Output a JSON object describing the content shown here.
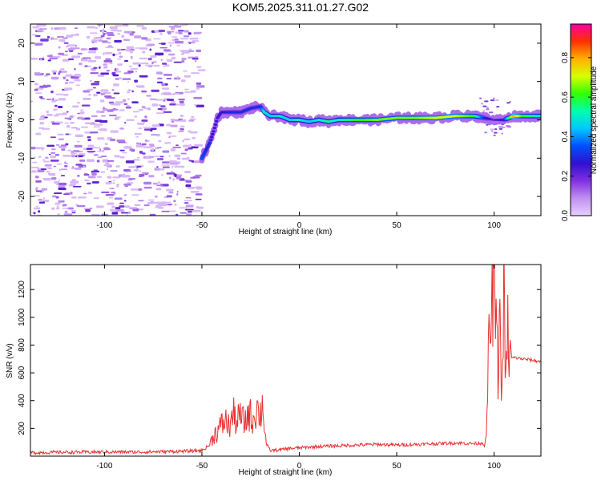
{
  "title": "KOM5.2025.311.01.27.G02",
  "chart_data": [
    {
      "type": "heatmap",
      "name": "spectrogram",
      "xlabel": "Height of straight line (km)",
      "ylabel": "Frequency (Hz)",
      "xlim": [
        -138,
        124
      ],
      "ylim": [
        -25,
        25
      ],
      "xticks": [
        -100,
        -50,
        0,
        50,
        100
      ],
      "yticks": [
        -20,
        -10,
        0,
        10,
        20
      ],
      "colorbar": {
        "label": "Normalized spectral amplitude",
        "range": [
          0.0,
          0.97
        ],
        "ticks": [
          0.0,
          0.2,
          0.4,
          0.6,
          0.8
        ],
        "colormap": [
          "#e8d0ff",
          "#c090f0",
          "#8030e0",
          "#3010d0",
          "#0050ff",
          "#00c8ff",
          "#00ffb0",
          "#30ff00",
          "#d8ff00",
          "#ffb000",
          "#ff3000",
          "#ff00a0"
        ]
      },
      "signal_track": {
        "x": [
          -50,
          -48,
          -46,
          -44,
          -42,
          -40,
          -35,
          -30,
          -25,
          -20,
          -18,
          -15,
          -10,
          -5,
          0,
          5,
          10,
          15,
          20,
          30,
          40,
          50,
          60,
          70,
          80,
          90,
          95,
          100,
          105,
          110,
          115,
          124
        ],
        "y": [
          -10,
          -8,
          -6,
          -3,
          0.5,
          2,
          2,
          2,
          3,
          3.5,
          2,
          1,
          1,
          0,
          0,
          -0.5,
          0,
          -0.5,
          0,
          0,
          0,
          0.5,
          0.5,
          0.5,
          1,
          1,
          0.5,
          0,
          0,
          1,
          1,
          1
        ],
        "amplitude": [
          0.35,
          0.3,
          0.3,
          0.25,
          0.25,
          0.25,
          0.3,
          0.3,
          0.3,
          0.3,
          0.5,
          0.45,
          0.5,
          0.45,
          0.5,
          0.45,
          0.5,
          0.55,
          0.5,
          0.6,
          0.65,
          0.65,
          0.65,
          0.7,
          0.7,
          0.6,
          0.3,
          0.2,
          0.25,
          0.8,
          0.6,
          0.5
        ]
      }
    },
    {
      "type": "line",
      "name": "snr",
      "xlabel": "Height of straight line (km)",
      "ylabel": "SNR (v/v)",
      "xlim": [
        -138,
        124
      ],
      "ylim": [
        0,
        1380
      ],
      "xticks": [
        -100,
        -50,
        0,
        50,
        100
      ],
      "yticks": [
        200,
        400,
        600,
        800,
        1000,
        1200
      ],
      "color": "#e83030",
      "series": [
        {
          "name": "SNR",
          "x": [
            -138,
            -120,
            -100,
            -80,
            -60,
            -50,
            -46,
            -44,
            -42,
            -40,
            -38,
            -36,
            -34,
            -32,
            -30,
            -28,
            -26,
            -24,
            -22,
            -20,
            -19,
            -18,
            -17,
            -15,
            -10,
            -5,
            0,
            10,
            20,
            30,
            40,
            50,
            60,
            70,
            80,
            90,
            94,
            95,
            96,
            97,
            98,
            99,
            100,
            101,
            102,
            103,
            104,
            105,
            106,
            107,
            108,
            110,
            115,
            120,
            124
          ],
          "y": [
            25,
            28,
            30,
            30,
            35,
            40,
            80,
            150,
            180,
            220,
            260,
            210,
            300,
            250,
            290,
            230,
            320,
            260,
            350,
            300,
            380,
            250,
            90,
            40,
            45,
            55,
            60,
            70,
            75,
            80,
            85,
            80,
            85,
            90,
            95,
            90,
            95,
            80,
            140,
            700,
            900,
            1100,
            1380,
            900,
            600,
            1000,
            400,
            1200,
            500,
            900,
            700,
            710,
            700,
            690,
            680
          ]
        }
      ]
    }
  ]
}
